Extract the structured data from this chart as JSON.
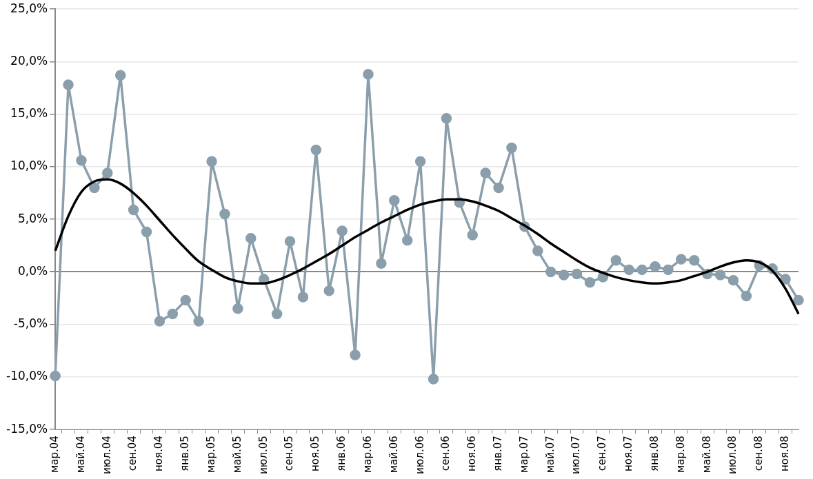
{
  "chart_data": {
    "type": "line",
    "categories": [
      "мар.04",
      null,
      "май.04",
      null,
      "июл.04",
      null,
      "сен.04",
      null,
      "ноя.04",
      null,
      "янв.05",
      null,
      "мар.05",
      null,
      "май.05",
      null,
      "июл.05",
      null,
      "сен.05",
      null,
      "ноя.05",
      null,
      "янв.06",
      null,
      "мар.06",
      null,
      "май.06",
      null,
      "июл.06",
      null,
      "сен.06",
      null,
      "ноя.06",
      null,
      "янв.07",
      null,
      "мар.07",
      null,
      "май.07",
      null,
      "июл.07",
      null,
      "сен.07",
      null,
      "ноя.07",
      null,
      "янв.08",
      null,
      "мар.08",
      null,
      "май.08",
      null,
      "июл.08",
      null,
      "сен.08",
      null,
      "ноя.08",
      null
    ],
    "series": [
      {
        "color": "#8a9fab",
        "values": [
          -9.9,
          17.8,
          10.6,
          8.0,
          9.4,
          18.7,
          5.9,
          3.8,
          -4.7,
          -4.0,
          -2.7,
          -4.7,
          10.5,
          5.5,
          -3.5,
          3.2,
          -0.7,
          -4.0,
          2.9,
          -2.4,
          11.6,
          -1.8,
          3.9,
          -7.9,
          18.8,
          0.8,
          6.8,
          3.0,
          10.5,
          -10.2,
          14.6,
          6.6,
          3.5,
          9.4,
          8.0,
          11.8,
          4.3,
          2.0,
          0.0,
          -0.3,
          -0.2,
          -1.0,
          -0.5,
          1.1,
          0.2,
          0.2,
          0.5,
          0.2,
          1.2,
          1.1,
          -0.2,
          -0.3,
          -0.8,
          -2.3,
          0.6,
          0.3,
          -0.7,
          -2.7
        ]
      },
      {
        "color": "#000000",
        "marker": "none",
        "values": [
          2.0,
          5.3,
          7.6,
          8.6,
          8.8,
          8.4,
          7.5,
          6.3,
          4.9,
          3.5,
          2.2,
          1.0,
          0.2,
          -0.5,
          -0.9,
          -1.1,
          -1.1,
          -0.8,
          -0.3,
          0.3,
          1.0,
          1.7,
          2.5,
          3.3,
          4.0,
          4.7,
          5.3,
          5.9,
          6.4,
          6.7,
          6.9,
          6.9,
          6.7,
          6.3,
          5.8,
          5.1,
          4.4,
          3.6,
          2.7,
          1.9,
          1.1,
          0.4,
          -0.1,
          -0.5,
          -0.8,
          -1.0,
          -1.1,
          -1.0,
          -0.8,
          -0.4,
          0.0,
          0.5,
          0.9,
          1.1,
          0.9,
          0.1,
          -1.6,
          -4.0
        ]
      }
    ],
    "ylim": [
      -15,
      25
    ],
    "yticks": [
      {
        "value": -15,
        "label": "-15,0%"
      },
      {
        "value": -10,
        "label": "-10,0%"
      },
      {
        "value": -5,
        "label": "-5,0%"
      },
      {
        "value": 0,
        "label": "0,0%"
      },
      {
        "value": 5,
        "label": "5,0%"
      },
      {
        "value": 10,
        "label": "10,0%"
      },
      {
        "value": 15,
        "label": "15,0%"
      },
      {
        "value": 20,
        "label": "20,0%"
      },
      {
        "value": 25,
        "label": "25,0%"
      }
    ],
    "grid": "y",
    "legend": false,
    "marker": "circle",
    "line_style": "solid"
  }
}
